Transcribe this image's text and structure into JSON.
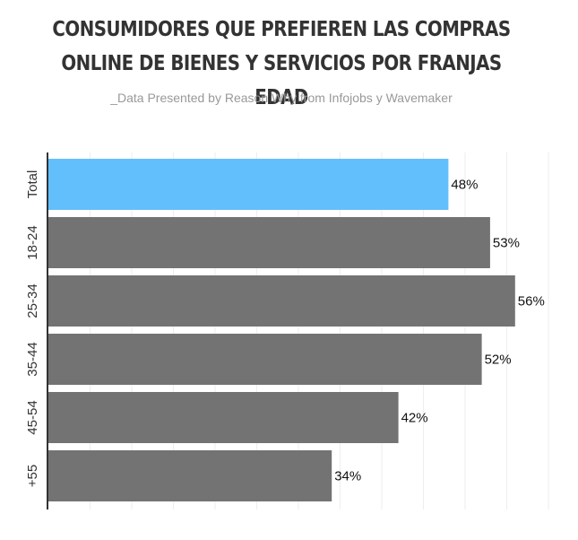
{
  "chart_data": {
    "type": "bar",
    "orientation": "horizontal",
    "title_lines": [
      "CONSUMIDORES QUE PREFIEREN LAS COMPRAS",
      "ONLINE DE BIENES Y SERVICIOS POR FRANJAS EDAD"
    ],
    "subtitle": "_Data Presented by Reason Why from Infojobs y Wavemaker",
    "categories": [
      "Total",
      "18-24",
      "25-34",
      "35-44",
      "45-54",
      "+55"
    ],
    "values": [
      48,
      53,
      56,
      52,
      42,
      34
    ],
    "data_labels": [
      "48%",
      "53%",
      "56%",
      "52%",
      "42%",
      "34%"
    ],
    "xlim": [
      0,
      60
    ],
    "grid": true,
    "colors": {
      "highlight": "#62BFFC",
      "bar": "#737373",
      "title": "#333333",
      "subtitle": "#999999",
      "grid": "#eeeeee",
      "axis": "#333333"
    },
    "highlight_category": "Total"
  }
}
